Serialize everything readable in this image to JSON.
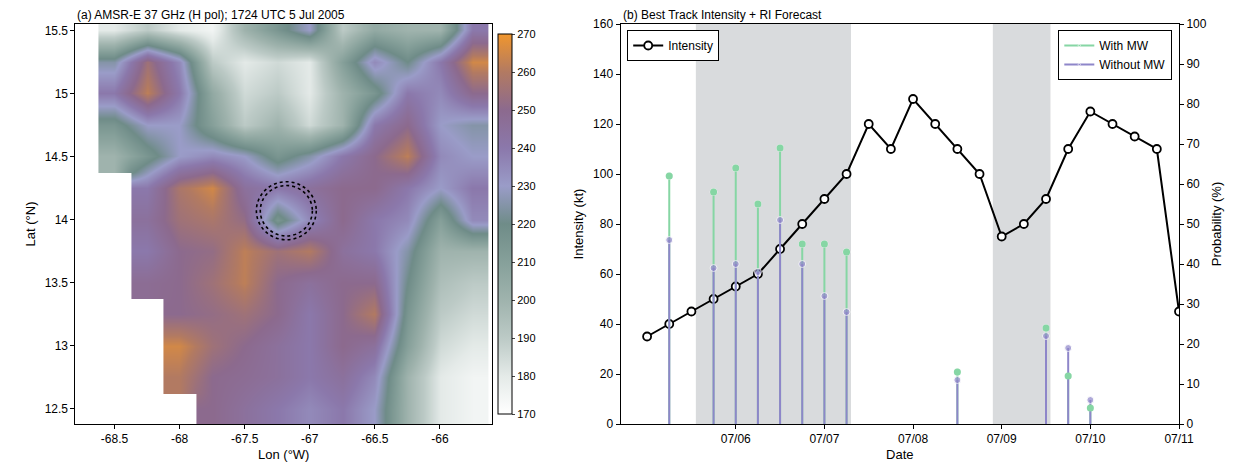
{
  "chart_data": [
    {
      "type": "heatmap",
      "title": "(a) AMSR-E 37 GHz (H pol); 1724 UTC 5 Jul 2005",
      "x_label": "Lon (°W)",
      "y_label": "Lat (°N)",
      "x": [
        -68.75,
        -68.5,
        -68.25,
        -68,
        -67.75,
        -67.5,
        -67.25,
        -67,
        -66.75,
        -66.5,
        -66.25,
        -66,
        -65.75
      ],
      "y": [
        12.5,
        12.75,
        13,
        13.25,
        13.5,
        13.75,
        14,
        14.25,
        14.5,
        14.75,
        15,
        15.25,
        15.5
      ],
      "z": [
        [
          null,
          null,
          null,
          null,
          250,
          245,
          240,
          235,
          240,
          230,
          200,
          180,
          175
        ],
        [
          null,
          null,
          null,
          260,
          250,
          248,
          245,
          240,
          245,
          235,
          200,
          180,
          175
        ],
        [
          null,
          null,
          null,
          265,
          255,
          250,
          245,
          240,
          250,
          245,
          210,
          185,
          180
        ],
        [
          null,
          null,
          null,
          250,
          252,
          255,
          250,
          240,
          250,
          260,
          215,
          190,
          185
        ],
        [
          null,
          null,
          248,
          250,
          255,
          262,
          250,
          245,
          250,
          250,
          220,
          195,
          190
        ],
        [
          null,
          null,
          240,
          250,
          252,
          262,
          255,
          260,
          245,
          240,
          225,
          200,
          200
        ],
        [
          null,
          null,
          245,
          255,
          258,
          252,
          215,
          235,
          250,
          240,
          235,
          210,
          235
        ],
        [
          null,
          null,
          240,
          258,
          265,
          245,
          240,
          245,
          250,
          250,
          240,
          230,
          240
        ],
        [
          null,
          200,
          215,
          230,
          235,
          230,
          215,
          225,
          240,
          250,
          262,
          235,
          230
        ],
        [
          null,
          215,
          230,
          230,
          210,
          190,
          200,
          185,
          200,
          240,
          250,
          230,
          225
        ],
        [
          null,
          240,
          262,
          240,
          205,
          185,
          190,
          180,
          200,
          215,
          240,
          235,
          250
        ],
        [
          null,
          225,
          255,
          235,
          190,
          180,
          185,
          180,
          210,
          235,
          220,
          240,
          265
        ],
        [
          null,
          180,
          190,
          180,
          175,
          200,
          215,
          230,
          190,
          205,
          200,
          200,
          240
        ]
      ],
      "xlim": [
        -68.8,
        -65.6
      ],
      "ylim": [
        12.38,
        15.55
      ],
      "xticks": [
        -68.5,
        -68,
        -67.5,
        -67,
        -66.5,
        -66
      ],
      "yticks": [
        12.5,
        13,
        13.5,
        14,
        14.5,
        15,
        15.5
      ],
      "colorbar": {
        "range": [
          170,
          270
        ],
        "ticks": [
          170,
          180,
          190,
          200,
          210,
          220,
          230,
          240,
          250,
          260,
          270
        ]
      },
      "circles": {
        "center": [
          -67.18,
          14.07
        ],
        "radii": [
          0.2,
          0.23
        ]
      }
    },
    {
      "type": "line",
      "title": "(b) Best Track Intensity + RI Forecast",
      "x_label": "Date",
      "y_label": "Intensity (kt)",
      "y2_label": "Probability (%)",
      "xlim": [
        4.7,
        11
      ],
      "xticks": [
        {
          "value": 6,
          "label": "07/06"
        },
        {
          "value": 7,
          "label": "07/07"
        },
        {
          "value": 8,
          "label": "07/08"
        },
        {
          "value": 9,
          "label": "07/09"
        },
        {
          "value": 10,
          "label": "07/10"
        },
        {
          "value": 11,
          "label": "07/11"
        }
      ],
      "ylim": [
        0,
        160
      ],
      "yticks": [
        0,
        20,
        40,
        60,
        80,
        100,
        120,
        140,
        160
      ],
      "y2lim": [
        0,
        100
      ],
      "y2ticks": [
        0,
        10,
        20,
        30,
        40,
        50,
        60,
        70,
        80,
        90,
        100
      ],
      "shaded": [
        [
          5.55,
          7.3
        ],
        [
          8.9,
          9.55
        ]
      ],
      "series": [
        {
          "name": "Intensity",
          "type": "line",
          "color": "#000000",
          "marker": "open circle",
          "legend": "upper left",
          "x": [
            5,
            5.25,
            5.5,
            5.75,
            6,
            6.25,
            6.5,
            6.75,
            7,
            7.25,
            7.5,
            7.75,
            8,
            8.25,
            8.5,
            8.75,
            9,
            9.25,
            9.5,
            9.75,
            10,
            10.25,
            10.5,
            10.75,
            11
          ],
          "values": [
            35,
            40,
            45,
            50,
            55,
            60,
            70,
            80,
            90,
            100,
            120,
            110,
            130,
            120,
            110,
            100,
            75,
            80,
            90,
            110,
            125,
            120,
            115,
            110,
            45
          ]
        },
        {
          "name": "With MW",
          "type": "stem",
          "axis": "y2",
          "color": "#86d6a4",
          "marker": "circle",
          "legend": "upper right",
          "x": [
            5.25,
            5.75,
            6,
            6.25,
            6.5,
            6.75,
            7,
            7.25,
            8.5,
            9.5,
            9.75,
            10
          ],
          "values": [
            62,
            58,
            64,
            55,
            69,
            45,
            45,
            43,
            13,
            24,
            12,
            4
          ]
        },
        {
          "name": "Without MW",
          "type": "stem",
          "axis": "y2",
          "color": "#8e86c9",
          "marker": "circle",
          "legend": "upper right",
          "x": [
            5.25,
            5.75,
            6,
            6.25,
            6.5,
            6.75,
            7,
            7.25,
            8.5,
            9.5,
            9.75,
            10
          ],
          "values": [
            46,
            39,
            40,
            38,
            51,
            40,
            32,
            28,
            11,
            22,
            19,
            6
          ]
        }
      ]
    }
  ]
}
